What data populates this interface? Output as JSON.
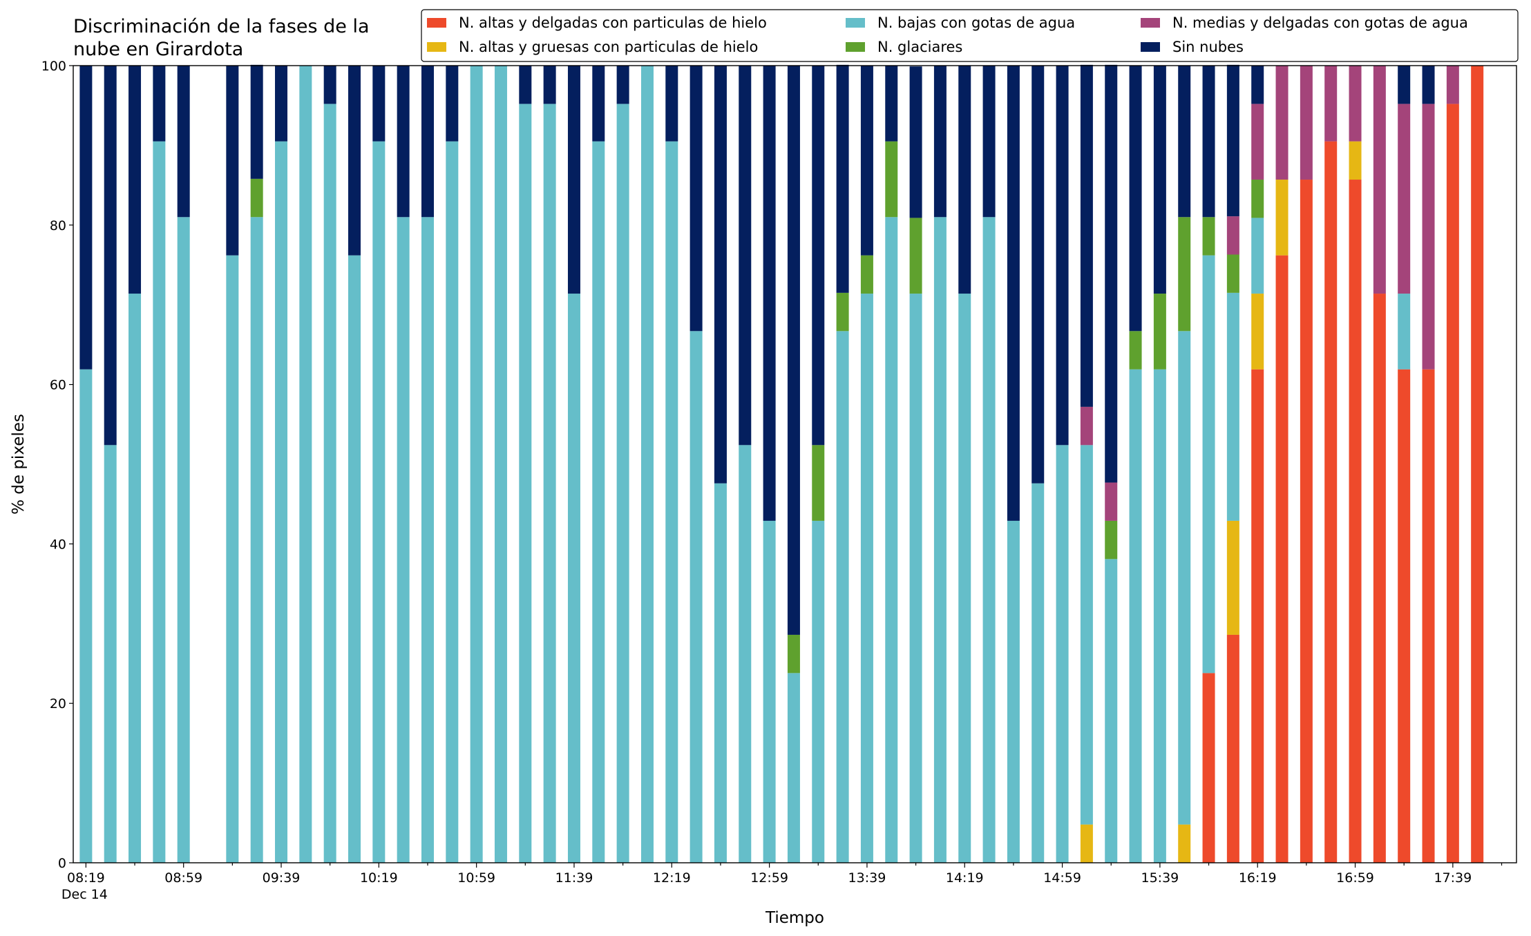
{
  "chart_data": {
    "type": "stacked_bar",
    "title": "Discriminación de la fases de la\nnube en Girardota",
    "x_label": "Tiempo",
    "y_label": "% de pixeles",
    "x_sublabel": "Dec 14",
    "categories": [
      "08:19",
      null,
      null,
      null,
      "08:59",
      null,
      null,
      null,
      "09:39",
      null,
      null,
      null,
      "10:19",
      null,
      null,
      null,
      "10:59",
      null,
      null,
      null,
      "11:39",
      null,
      null,
      null,
      "12:19",
      null,
      null,
      null,
      "12:59",
      null,
      null,
      null,
      "13:39",
      null,
      null,
      null,
      "14:19",
      null,
      null,
      null,
      "14:59",
      null,
      null,
      null,
      "15:39",
      null,
      null,
      null,
      "16:19",
      null,
      null,
      null,
      "16:59",
      null,
      null,
      null,
      "17:39",
      null
    ],
    "ylim": [
      0,
      100
    ],
    "yticks": [
      0,
      20,
      40,
      60,
      80,
      100
    ],
    "series": [
      {
        "name": "N. altas y delgadas con particulas de hielo",
        "color": "#ee4a2b",
        "values": [
          0,
          0,
          0,
          0,
          0,
          null,
          0,
          0,
          0,
          0,
          0,
          0,
          0,
          0,
          0,
          0,
          0,
          0,
          0,
          0,
          0,
          0,
          0,
          0,
          0,
          0,
          0,
          0,
          0,
          0,
          0,
          0,
          0,
          0,
          0,
          0,
          0,
          0,
          0,
          0,
          0,
          0,
          0,
          0,
          0,
          0,
          23.8,
          28.6,
          61.9,
          76.2,
          85.7,
          90.5,
          85.7,
          71.4,
          61.9,
          61.9,
          95.2,
          100
        ]
      },
      {
        "name": "N. altas y gruesas con particulas de hielo",
        "color": "#e6b714",
        "values": [
          0,
          0,
          0,
          0,
          0,
          null,
          0,
          0,
          0,
          0,
          0,
          0,
          0,
          0,
          0,
          0,
          0,
          0,
          0,
          0,
          0,
          0,
          0,
          0,
          0,
          0,
          0,
          0,
          0,
          0,
          0,
          0,
          0,
          0,
          0,
          0,
          0,
          0,
          0,
          0,
          0,
          4.8,
          0,
          0,
          0,
          4.8,
          0,
          14.3,
          9.5,
          9.5,
          0,
          0,
          4.8,
          0,
          0,
          0,
          0,
          0
        ]
      },
      {
        "name": "N. bajas con gotas de agua",
        "color": "#65bec9",
        "values": [
          61.9,
          52.4,
          71.4,
          90.5,
          81,
          null,
          76.2,
          81,
          90.5,
          100,
          95.2,
          76.2,
          90.5,
          81,
          81,
          90.5,
          100,
          100,
          95.2,
          95.2,
          71.4,
          90.5,
          95.2,
          100,
          90.5,
          66.7,
          47.6,
          52.4,
          42.9,
          23.8,
          42.9,
          66.7,
          71.4,
          81,
          71.4,
          81,
          71.4,
          81,
          42.9,
          47.6,
          52.4,
          47.6,
          38.1,
          61.9,
          61.9,
          61.9,
          52.4,
          28.6,
          9.5,
          0,
          0,
          0,
          0,
          0,
          9.5,
          0,
          0,
          0
        ]
      },
      {
        "name": "N. glaciares",
        "color": "#5fa12e",
        "values": [
          0,
          0,
          0,
          0,
          0,
          null,
          0,
          4.8,
          0,
          0,
          0,
          0,
          0,
          0,
          0,
          0,
          0,
          0,
          0,
          0,
          0,
          0,
          0,
          0,
          0,
          0,
          0,
          0,
          0,
          4.8,
          9.5,
          4.8,
          4.8,
          9.5,
          9.5,
          0,
          0,
          0,
          0,
          0,
          0,
          0,
          4.8,
          4.8,
          9.5,
          14.3,
          4.8,
          4.8,
          4.8,
          0,
          0,
          0,
          0,
          0,
          0,
          0,
          0,
          0
        ]
      },
      {
        "name": "N. medias y delgadas con gotas de agua",
        "color": "#a4447a",
        "values": [
          0,
          0,
          0,
          0,
          0,
          null,
          0,
          0,
          0,
          0,
          0,
          0,
          0,
          0,
          0,
          0,
          0,
          0,
          0,
          0,
          0,
          0,
          0,
          0,
          0,
          0,
          0,
          0,
          0,
          0,
          0,
          0,
          0,
          0,
          0,
          0,
          0,
          0,
          0,
          0,
          0,
          4.8,
          4.8,
          0,
          0,
          0,
          0,
          4.8,
          9.5,
          14.3,
          14.3,
          9.5,
          9.5,
          28.6,
          23.8,
          33.3,
          4.8,
          0
        ]
      },
      {
        "name": "Sin nubes",
        "color": "#041f5e",
        "values": [
          38.1,
          47.6,
          28.6,
          9.5,
          19,
          null,
          23.8,
          14.3,
          9.5,
          0,
          4.8,
          23.8,
          9.5,
          19,
          19,
          9.5,
          0,
          0,
          4.8,
          4.8,
          28.6,
          9.5,
          4.8,
          0,
          9.5,
          33.3,
          52.4,
          47.6,
          57.1,
          71.4,
          47.6,
          28.6,
          23.8,
          9.5,
          19,
          19,
          28.6,
          19,
          57.1,
          52.4,
          47.6,
          42.9,
          52.4,
          33.3,
          28.6,
          19,
          19,
          19,
          4.8,
          0,
          0,
          0,
          0,
          0,
          4.8,
          4.8,
          0,
          0
        ]
      }
    ]
  }
}
